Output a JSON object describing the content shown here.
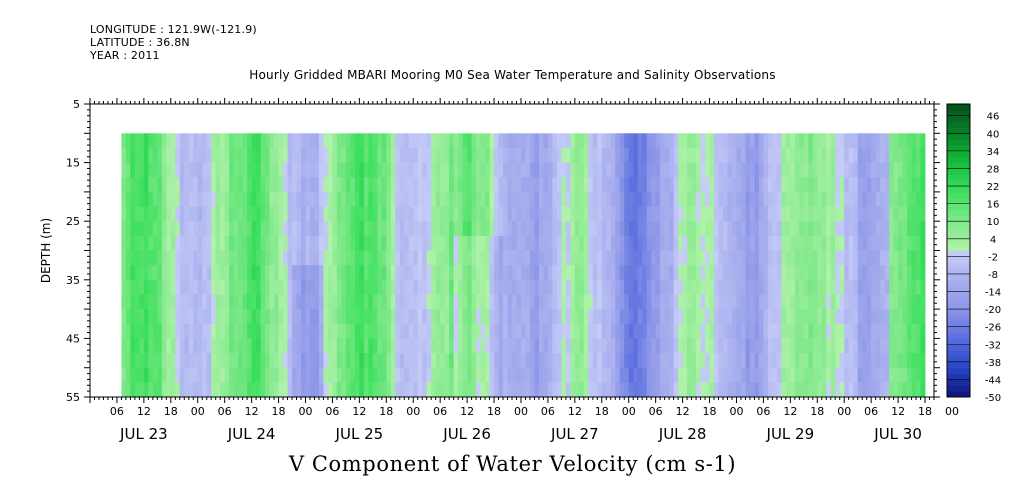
{
  "header": {
    "longitude": "LONGITUDE : 121.9W(-121.9)",
    "latitude": "LATITUDE : 36.8N",
    "year": "YEAR : 2011"
  },
  "title": "Hourly Gridded MBARI Mooring M0 Sea Water Temperature and Salinity Observations",
  "caption": "V Component of Water Velocity (cm s-1)",
  "chart_data": {
    "type": "heatmap",
    "title": "Hourly Gridded MBARI Mooring M0 Sea Water Temperature and Salinity Observations",
    "xlabel": "",
    "ylabel": "DEPTH (m)",
    "colorbar_label": "V Component of Water Velocity (cm s-1)",
    "x_hour_ticks": [
      "06",
      "12",
      "18",
      "00",
      "06",
      "12",
      "18",
      "00",
      "06",
      "12",
      "18",
      "00",
      "06",
      "12",
      "18",
      "00",
      "06",
      "12",
      "18",
      "00",
      "06",
      "12",
      "18",
      "00",
      "06",
      "12",
      "18",
      "00",
      "06",
      "12",
      "18",
      "00"
    ],
    "x_day_labels": [
      "JUL 23",
      "JUL 24",
      "JUL 25",
      "JUL 26",
      "JUL 27",
      "JUL 28",
      "JUL 29",
      "JUL 30"
    ],
    "xlim_hours_from_jul23_00": [
      0,
      188
    ],
    "data_xrange_hours_from_jul23_00": [
      7,
      186
    ],
    "y_ticks": [
      5,
      15,
      25,
      35,
      45,
      55
    ],
    "ylim": [
      55,
      5
    ],
    "data_depth_range": [
      10,
      55
    ],
    "colorbar_levels": [
      -50,
      -44,
      -38,
      -32,
      -26,
      -20,
      -14,
      -8,
      -2,
      4,
      10,
      16,
      22,
      28,
      34,
      40,
      46
    ],
    "colorbar_range": [
      -50,
      50
    ],
    "color_sign": {
      "negative": "#a9b0ee",
      "positive": "#3ee35f"
    },
    "column_values_day_segments": [
      {
        "day": "JUL 23",
        "hours": [
          7,
          24
        ],
        "pattern": "mostly positive green, stronger band near 18h"
      },
      {
        "day": "JUL 24",
        "hours": [
          24,
          48
        ],
        "pattern": "weak negative early, strong positive 06-18h"
      },
      {
        "day": "JUL 25",
        "hours": [
          48,
          72
        ],
        "pattern": "strong positive 00-18h, negative patch ~20h"
      },
      {
        "day": "JUL 26",
        "hours": [
          72,
          96
        ],
        "pattern": "positive near 06-10h, negative after 12h"
      },
      {
        "day": "JUL 27",
        "hours": [
          96,
          120
        ],
        "pattern": "mostly negative, light green bands"
      },
      {
        "day": "JUL 28",
        "hours": [
          120,
          144
        ],
        "pattern": "negative dominant, positive near 06h and 18h"
      },
      {
        "day": "JUL 29",
        "hours": [
          144,
          168
        ],
        "pattern": "positive green dominant"
      },
      {
        "day": "JUL 30",
        "hours": [
          168,
          186
        ],
        "pattern": "positive, negative patch near 00h"
      }
    ]
  }
}
